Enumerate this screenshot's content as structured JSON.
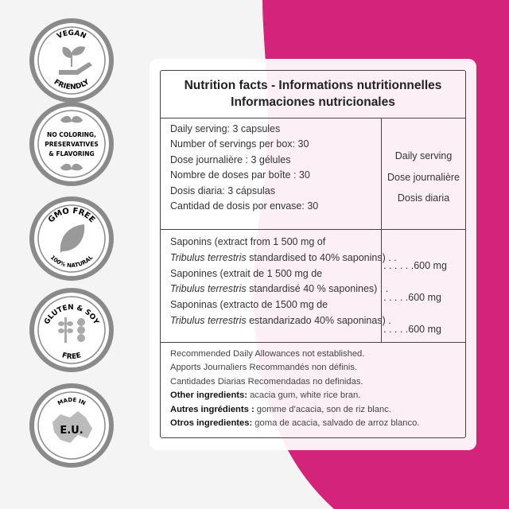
{
  "colors": {
    "accent": "#d4247a",
    "badge_gray": "#8a8a8a",
    "background": "#f5f4f5"
  },
  "badges": [
    {
      "top": "VEGAN",
      "bottom": "FRIENDLY",
      "icon": "hand-plant-icon"
    },
    {
      "lines": [
        "NO COLORING,",
        "PRESERVATIVES",
        "& FLAVORING"
      ],
      "icon": "leaves-icon"
    },
    {
      "top": "GMO FREE",
      "bottom": "100% NATURAL",
      "icon": "leaf-icon"
    },
    {
      "top": "GLUTEN & SOY",
      "bottom": "FREE",
      "icon": "wheat-soy-icon"
    },
    {
      "top": "MADE IN",
      "center": "E.U.",
      "icon": "europe-map-icon"
    }
  ],
  "table": {
    "title1": "Nutrition facts - Informations nutritionnelles",
    "title2": "Informaciones nutricionales",
    "serving_lines": [
      "Daily serving: 3 capsules",
      "Number of servings per box: 30",
      "Dose journalière : 3 gélules",
      "Nombre de doses par boîte : 30",
      "Dosis diaria: 3 cápsulas",
      "Cantidad de dosis por envase: 30"
    ],
    "serving_headers": [
      "Daily serving",
      "Dose journalière",
      "Dosis diaria"
    ],
    "ingredients": [
      {
        "line1": "Saponins (extract from 1 500 mg of",
        "species": "Tribulus terrestris",
        "line2": " standardised to 40% saponins) . .",
        "amount": ". . . . . .600  mg"
      },
      {
        "line1": "Saponines (extrait de 1 500 mg de",
        "species": "Tribulus terrestris",
        "line2": " standardisé 40 % saponines)  . .",
        "amount": ". . . . .600  mg"
      },
      {
        "line1": "Saponinas (extracto de 1500 mg de",
        "species": "Tribulus terrestris",
        "line2": " estandarizado 40% saponinas)  .",
        "amount": ". . . . .600  mg"
      }
    ],
    "notes": [
      "Recommended Daily Allowances not established.",
      "Apports Journaliers Recommandés non définis.",
      "Cantidades Diarias Recomendadas no definidas."
    ],
    "other": [
      {
        "label": "Other ingredients:",
        "value": " acacia gum, white rice bran."
      },
      {
        "label": "Autres ingrédients :",
        "value": " gomme d’acacia, son de riz blanc."
      },
      {
        "label": "Otros ingredientes:",
        "value": " goma de acacia, salvado de arroz blanco."
      }
    ]
  }
}
